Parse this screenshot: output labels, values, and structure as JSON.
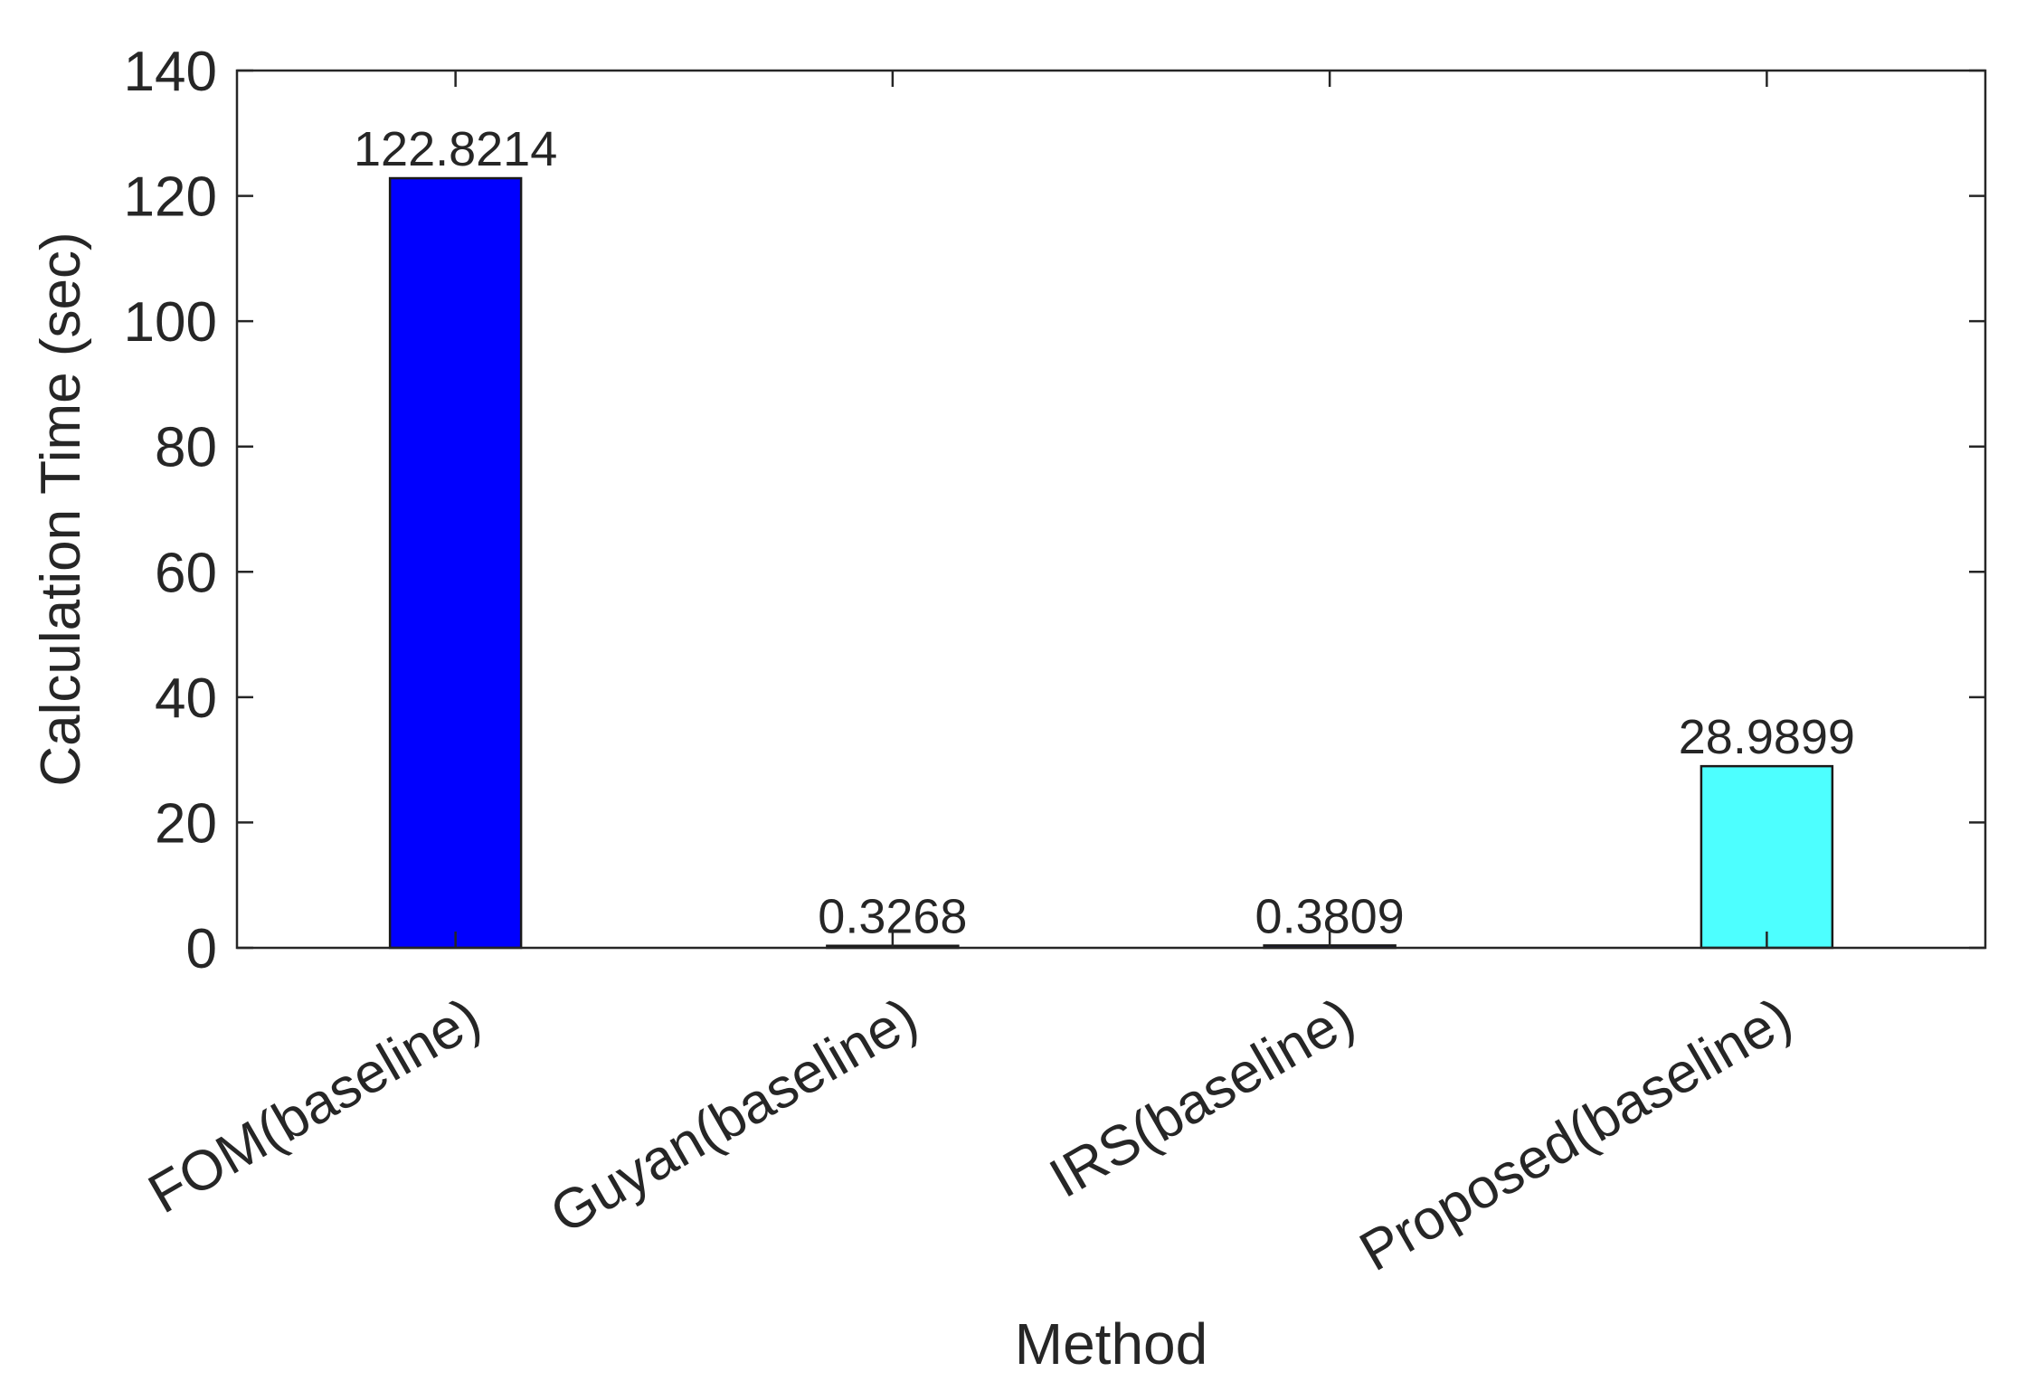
{
  "chart_data": {
    "type": "bar",
    "categories": [
      "FOM(baseline)",
      "Guyan(baseline)",
      "IRS(baseline)",
      "Proposed(baseline)"
    ],
    "values": [
      122.8214,
      0.3268,
      0.3809,
      28.9899
    ],
    "value_labels": [
      "122.8214",
      "0.3268",
      "0.3809",
      "28.9899"
    ],
    "bar_colors": [
      "#0000ff",
      "#0000ff",
      "#0000ff",
      "#4dffff"
    ],
    "xlabel": "Method",
    "ylabel": "Calculation Time (sec)",
    "ylim": [
      0,
      140
    ],
    "yticks": [
      0,
      20,
      40,
      60,
      80,
      100,
      120,
      140
    ],
    "grid": false,
    "legend": "none"
  }
}
